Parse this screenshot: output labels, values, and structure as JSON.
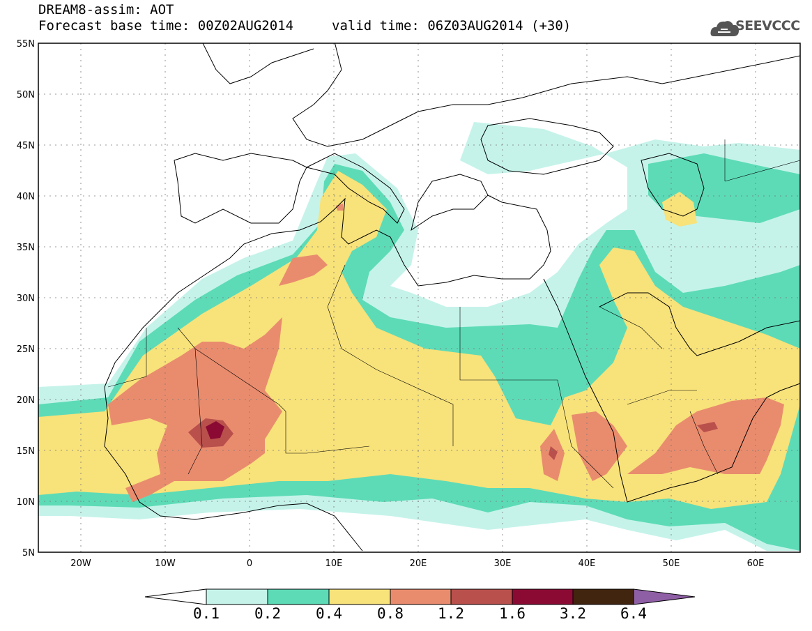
{
  "header": {
    "title": "DREAM8-assim: AOT",
    "base_time": "Forecast base time: 00Z02AUG2014",
    "valid_time": "valid time: 06Z03AUG2014 (+30)",
    "logo_text": "SEEVCCC",
    "logo_icon": "cloud-icon"
  },
  "map": {
    "region": "North Africa, Mediterranean, Middle East",
    "lat_range": [
      5,
      55
    ],
    "lon_range": [
      -25,
      65
    ],
    "lat_ticks": [
      "55N",
      "50N",
      "45N",
      "40N",
      "35N",
      "30N",
      "25N",
      "20N",
      "15N",
      "10N",
      "5N"
    ],
    "lon_ticks": [
      "20W",
      "10W",
      "0",
      "10E",
      "20E",
      "30E",
      "40E",
      "50E",
      "60E"
    ],
    "grid": "dotted"
  },
  "colorbar": {
    "labels": [
      "0.1",
      "0.2",
      "0.4",
      "0.8",
      "1.2",
      "1.6",
      "3.2",
      "6.4"
    ],
    "colors": [
      "#c5f3ea",
      "#5ddbb7",
      "#f8e27a",
      "#e98c6e",
      "#b9504c",
      "#8b0a33",
      "#42250f",
      "#8f5fa5"
    ]
  }
}
